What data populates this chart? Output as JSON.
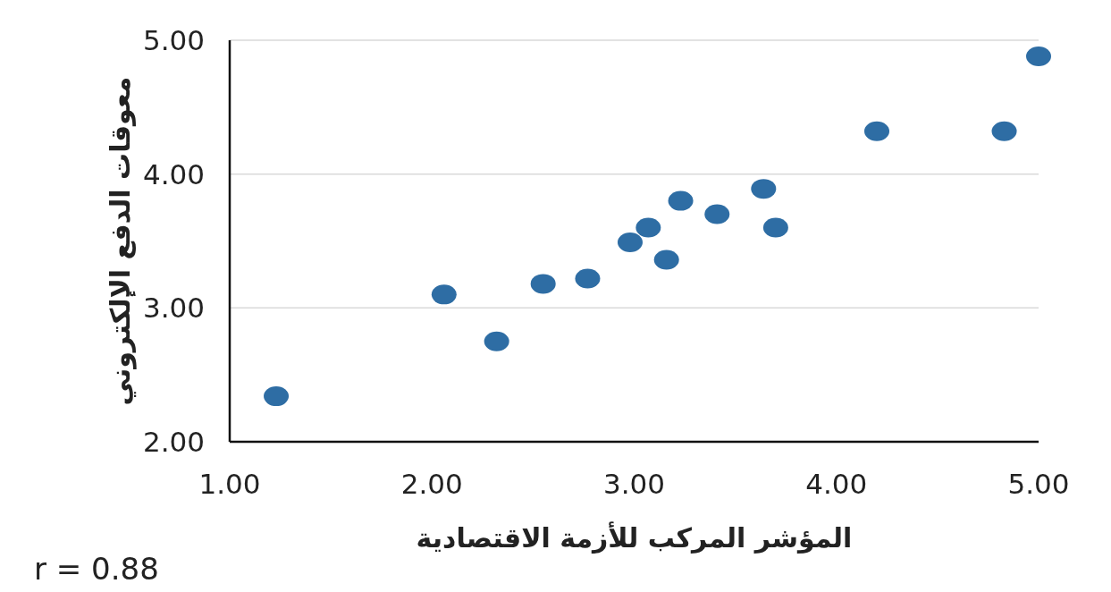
{
  "chart_data": {
    "type": "scatter",
    "xlabel": "المؤشر المركب للأزمة الاقتصادية",
    "ylabel": "معوقات الدفع الإلكتروني",
    "x": [
      1.23,
      2.06,
      2.32,
      2.55,
      2.77,
      2.98,
      3.07,
      3.16,
      3.23,
      3.41,
      3.64,
      3.7,
      4.2,
      4.83,
      5.0
    ],
    "values": [
      2.34,
      3.1,
      2.75,
      3.18,
      3.22,
      3.49,
      3.6,
      3.36,
      3.8,
      3.7,
      3.89,
      3.6,
      4.32,
      4.32,
      4.88
    ],
    "color": "#2e6da4",
    "marker": "circle",
    "xlim": [
      1,
      5
    ],
    "ylim": [
      2,
      5
    ],
    "xticks": [
      {
        "value": 1,
        "label": "1.00"
      },
      {
        "value": 2,
        "label": "2.00"
      },
      {
        "value": 3,
        "label": "3.00"
      },
      {
        "value": 4,
        "label": "4.00"
      },
      {
        "value": 5,
        "label": "5.00"
      }
    ],
    "yticks": [
      {
        "value": 2,
        "label": "2.00"
      },
      {
        "value": 3,
        "label": "3.00"
      },
      {
        "value": 4,
        "label": "4.00"
      },
      {
        "value": 5,
        "label": "5.00"
      }
    ],
    "grid": "y",
    "annotations": [
      "r = 0.88"
    ]
  }
}
